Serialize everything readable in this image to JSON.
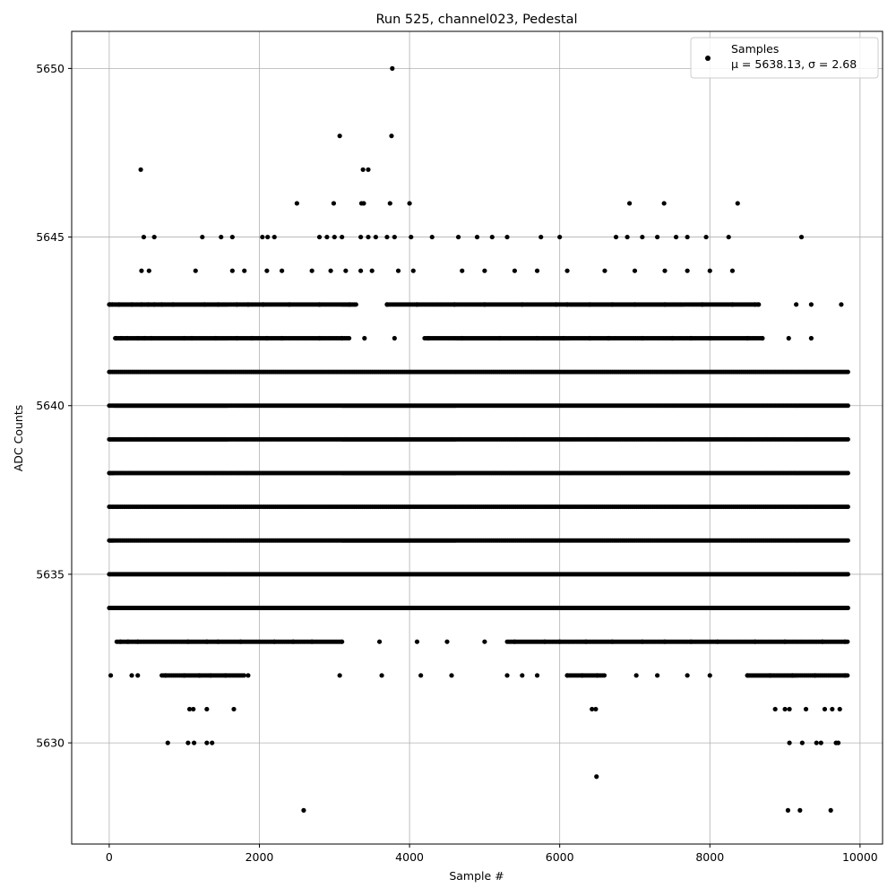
{
  "chart_data": {
    "type": "scatter",
    "title": "Run 525, channel023, Pedestal",
    "xlabel": "Sample #",
    "ylabel": "ADC Counts",
    "xlim": [
      -500,
      10300
    ],
    "ylim": [
      5627,
      5651.1
    ],
    "x_ticks": [
      0,
      2000,
      4000,
      6000,
      8000,
      10000
    ],
    "x_tick_labels": [
      "0",
      "2000",
      "4000",
      "6000",
      "8000",
      "10000"
    ],
    "y_ticks": [
      5630,
      5635,
      5640,
      5645,
      5650
    ],
    "y_tick_labels": [
      "5630",
      "5635",
      "5640",
      "5645",
      "5650"
    ],
    "grid": true,
    "legend_position": "top-right",
    "series": [
      {
        "name": "Samples",
        "stats_label": "μ = 5638.13, σ = 2.68",
        "color": "#000000",
        "marker": "circle",
        "n_points": 9850,
        "x_range": [
          0,
          9850
        ],
        "level_bands": [
          {
            "y": 5643,
            "x_ranges": [
              [
                0,
                3300
              ],
              [
                3700,
                8650
              ]
            ]
          },
          {
            "y": 5642,
            "x_ranges": [
              [
                80,
                3200
              ],
              [
                4200,
                8700
              ]
            ]
          },
          {
            "y": 5641,
            "x_ranges": [
              [
                0,
                9850
              ]
            ]
          },
          {
            "y": 5640,
            "x_ranges": [
              [
                0,
                9850
              ]
            ]
          },
          {
            "y": 5639,
            "x_ranges": [
              [
                0,
                9850
              ]
            ]
          },
          {
            "y": 5638,
            "x_ranges": [
              [
                0,
                9850
              ]
            ]
          },
          {
            "y": 5637,
            "x_ranges": [
              [
                0,
                9850
              ]
            ]
          },
          {
            "y": 5636,
            "x_ranges": [
              [
                0,
                9850
              ]
            ]
          },
          {
            "y": 5635,
            "x_ranges": [
              [
                0,
                9850
              ]
            ]
          },
          {
            "y": 5634,
            "x_ranges": [
              [
                0,
                9850
              ]
            ]
          },
          {
            "y": 5633,
            "x_ranges": [
              [
                100,
                3100
              ],
              [
                5300,
                9850
              ]
            ]
          },
          {
            "y": 5632,
            "x_ranges": [
              [
                700,
                1800
              ],
              [
                6100,
                6600
              ],
              [
                8500,
                9850
              ]
            ]
          }
        ],
        "points": [
          [
            4,
            5643
          ],
          [
            40,
            5643
          ],
          [
            130,
            5643
          ],
          [
            300,
            5643
          ],
          [
            430,
            5643
          ],
          [
            520,
            5643
          ],
          [
            600,
            5643
          ],
          [
            700,
            5643
          ],
          [
            850,
            5643
          ],
          [
            1270,
            5643
          ],
          [
            1450,
            5643
          ],
          [
            1700,
            5643
          ],
          [
            1850,
            5643
          ],
          [
            2050,
            5643
          ],
          [
            2400,
            5643
          ],
          [
            2800,
            5643
          ],
          [
            3200,
            5643
          ],
          [
            3700,
            5643
          ],
          [
            4100,
            5643
          ],
          [
            4600,
            5643
          ],
          [
            5000,
            5643
          ],
          [
            5500,
            5643
          ],
          [
            5950,
            5643
          ],
          [
            6100,
            5643
          ],
          [
            6400,
            5643
          ],
          [
            6700,
            5643
          ],
          [
            7000,
            5643
          ],
          [
            7400,
            5643
          ],
          [
            7900,
            5643
          ],
          [
            8300,
            5643
          ],
          [
            8600,
            5643
          ],
          [
            8650,
            5643
          ],
          [
            9150,
            5643
          ],
          [
            9350,
            5643
          ],
          [
            9750,
            5643
          ],
          [
            90,
            5642
          ],
          [
            160,
            5642
          ],
          [
            240,
            5642
          ],
          [
            380,
            5642
          ],
          [
            470,
            5642
          ],
          [
            560,
            5642
          ],
          [
            1000,
            5642
          ],
          [
            1100,
            5642
          ],
          [
            1420,
            5642
          ],
          [
            1700,
            5642
          ],
          [
            1900,
            5642
          ],
          [
            2100,
            5642
          ],
          [
            2300,
            5642
          ],
          [
            2800,
            5642
          ],
          [
            3100,
            5642
          ],
          [
            3400,
            5642
          ],
          [
            3800,
            5642
          ],
          [
            4250,
            5642
          ],
          [
            4700,
            5642
          ],
          [
            5200,
            5642
          ],
          [
            5700,
            5642
          ],
          [
            6050,
            5642
          ],
          [
            6400,
            5642
          ],
          [
            6650,
            5642
          ],
          [
            7100,
            5642
          ],
          [
            7500,
            5642
          ],
          [
            7750,
            5642
          ],
          [
            8000,
            5642
          ],
          [
            8500,
            5642
          ],
          [
            8700,
            5642
          ],
          [
            9050,
            5642
          ],
          [
            9350,
            5642
          ],
          [
            420,
            5647
          ],
          [
            3070,
            5648
          ],
          [
            3380,
            5647
          ],
          [
            3450,
            5647
          ],
          [
            3760,
            5648
          ],
          [
            3770,
            5650
          ],
          [
            2500,
            5646
          ],
          [
            2990,
            5646
          ],
          [
            3360,
            5646
          ],
          [
            3390,
            5646
          ],
          [
            3740,
            5646
          ],
          [
            4000,
            5646
          ],
          [
            6930,
            5646
          ],
          [
            7390,
            5646
          ],
          [
            8370,
            5646
          ],
          [
            460,
            5645
          ],
          [
            600,
            5645
          ],
          [
            1240,
            5645
          ],
          [
            1490,
            5645
          ],
          [
            1640,
            5645
          ],
          [
            2040,
            5645
          ],
          [
            2110,
            5645
          ],
          [
            2200,
            5645
          ],
          [
            2800,
            5645
          ],
          [
            2900,
            5645
          ],
          [
            3000,
            5645
          ],
          [
            3100,
            5645
          ],
          [
            3350,
            5645
          ],
          [
            3450,
            5645
          ],
          [
            3550,
            5645
          ],
          [
            3700,
            5645
          ],
          [
            3800,
            5645
          ],
          [
            4020,
            5645
          ],
          [
            4300,
            5645
          ],
          [
            4650,
            5645
          ],
          [
            4900,
            5645
          ],
          [
            5100,
            5645
          ],
          [
            5300,
            5645
          ],
          [
            5750,
            5645
          ],
          [
            6000,
            5645
          ],
          [
            6750,
            5645
          ],
          [
            6900,
            5645
          ],
          [
            7100,
            5645
          ],
          [
            7300,
            5645
          ],
          [
            7550,
            5645
          ],
          [
            7700,
            5645
          ],
          [
            7950,
            5645
          ],
          [
            8250,
            5645
          ],
          [
            9220,
            5645
          ],
          [
            430,
            5644
          ],
          [
            530,
            5644
          ],
          [
            1150,
            5644
          ],
          [
            1640,
            5644
          ],
          [
            1800,
            5644
          ],
          [
            2100,
            5644
          ],
          [
            2300,
            5644
          ],
          [
            2700,
            5644
          ],
          [
            2950,
            5644
          ],
          [
            3150,
            5644
          ],
          [
            3350,
            5644
          ],
          [
            3500,
            5644
          ],
          [
            3850,
            5644
          ],
          [
            4050,
            5644
          ],
          [
            4700,
            5644
          ],
          [
            5000,
            5644
          ],
          [
            5400,
            5644
          ],
          [
            5700,
            5644
          ],
          [
            6100,
            5644
          ],
          [
            6600,
            5644
          ],
          [
            7000,
            5644
          ],
          [
            7400,
            5644
          ],
          [
            7700,
            5644
          ],
          [
            8000,
            5644
          ],
          [
            8300,
            5644
          ],
          [
            150,
            5633
          ],
          [
            250,
            5633
          ],
          [
            380,
            5633
          ],
          [
            1050,
            5633
          ],
          [
            1300,
            5633
          ],
          [
            1450,
            5633
          ],
          [
            1750,
            5633
          ],
          [
            2200,
            5633
          ],
          [
            2450,
            5633
          ],
          [
            2700,
            5633
          ],
          [
            3100,
            5633
          ],
          [
            3600,
            5633
          ],
          [
            4100,
            5633
          ],
          [
            4500,
            5633
          ],
          [
            5000,
            5633
          ],
          [
            5400,
            5633
          ],
          [
            5800,
            5633
          ],
          [
            6000,
            5633
          ],
          [
            6350,
            5633
          ],
          [
            6700,
            5633
          ],
          [
            7100,
            5633
          ],
          [
            7400,
            5633
          ],
          [
            7750,
            5633
          ],
          [
            8100,
            5633
          ],
          [
            8600,
            5633
          ],
          [
            9000,
            5633
          ],
          [
            9500,
            5633
          ],
          [
            9800,
            5633
          ],
          [
            20,
            5632
          ],
          [
            300,
            5632
          ],
          [
            380,
            5632
          ],
          [
            750,
            5632
          ],
          [
            1000,
            5632
          ],
          [
            1200,
            5632
          ],
          [
            1350,
            5632
          ],
          [
            1550,
            5632
          ],
          [
            1850,
            5632
          ],
          [
            3070,
            5632
          ],
          [
            3630,
            5632
          ],
          [
            4150,
            5632
          ],
          [
            4560,
            5632
          ],
          [
            5300,
            5632
          ],
          [
            5500,
            5632
          ],
          [
            5700,
            5632
          ],
          [
            6100,
            5632
          ],
          [
            6300,
            5632
          ],
          [
            6500,
            5632
          ],
          [
            7020,
            5632
          ],
          [
            7300,
            5632
          ],
          [
            7700,
            5632
          ],
          [
            8000,
            5632
          ],
          [
            8500,
            5632
          ],
          [
            8800,
            5632
          ],
          [
            9100,
            5632
          ],
          [
            9400,
            5632
          ],
          [
            9800,
            5632
          ],
          [
            1070,
            5631
          ],
          [
            1120,
            5631
          ],
          [
            1300,
            5631
          ],
          [
            1660,
            5631
          ],
          [
            6430,
            5631
          ],
          [
            6480,
            5631
          ],
          [
            8870,
            5631
          ],
          [
            9000,
            5631
          ],
          [
            9060,
            5631
          ],
          [
            9280,
            5631
          ],
          [
            9530,
            5631
          ],
          [
            9630,
            5631
          ],
          [
            9730,
            5631
          ],
          [
            780,
            5630
          ],
          [
            1050,
            5630
          ],
          [
            1130,
            5630
          ],
          [
            1300,
            5630
          ],
          [
            1370,
            5630
          ],
          [
            9060,
            5630
          ],
          [
            9230,
            5630
          ],
          [
            9420,
            5630
          ],
          [
            9480,
            5630
          ],
          [
            9680,
            5630
          ],
          [
            9710,
            5630
          ],
          [
            6490,
            5629
          ],
          [
            2590,
            5628
          ],
          [
            9040,
            5628
          ],
          [
            9200,
            5628
          ],
          [
            9610,
            5628
          ]
        ]
      }
    ]
  }
}
